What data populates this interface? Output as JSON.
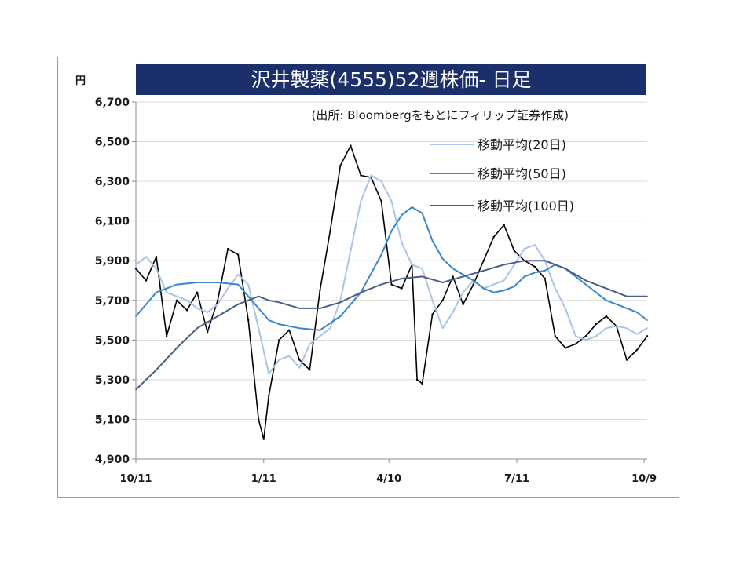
{
  "chart_data": {
    "type": "line",
    "title": "沢井製薬(4555)52週株価- 日足",
    "subtitle": "(出所: Bloombergをもとにフィリップ証券作成)",
    "ylabel": "円",
    "ylim": [
      4900,
      6700
    ],
    "yticks": [
      "4,900",
      "5,100",
      "5,300",
      "5,500",
      "5,700",
      "5,900",
      "6,100",
      "6,300",
      "6,500",
      "6,700"
    ],
    "xlim": [
      0,
      100
    ],
    "xticks": [
      {
        "label": "10/11",
        "x": 0
      },
      {
        "label": "1/11",
        "x": 25
      },
      {
        "label": "4/10",
        "x": 49.5
      },
      {
        "label": "7/11",
        "x": 74.5
      },
      {
        "label": "10/9",
        "x": 99.4
      }
    ],
    "grid": true,
    "legend_position": "top-right",
    "colors": {
      "price": "#000000",
      "ma20": "#a9c4e4",
      "ma50": "#3b87cc",
      "ma100": "#4a5f88",
      "title_bg": "#1b2f6b"
    },
    "series": [
      {
        "name": "日足",
        "x": [
          0,
          2,
          4,
          6,
          8,
          10,
          12,
          14,
          16,
          18,
          20,
          22,
          24,
          25,
          26,
          28,
          30,
          32,
          34,
          36,
          38,
          40,
          42,
          44,
          46,
          48,
          50,
          52,
          54,
          55,
          56,
          58,
          60,
          62,
          64,
          66,
          68,
          70,
          72,
          74,
          76,
          78,
          80,
          82,
          84,
          86,
          88,
          90,
          92,
          94,
          96,
          98,
          100
        ],
        "y": [
          5860,
          5800,
          5920,
          5520,
          5700,
          5650,
          5740,
          5540,
          5700,
          5960,
          5930,
          5600,
          5100,
          5000,
          5220,
          5500,
          5550,
          5400,
          5350,
          5750,
          6050,
          6380,
          6480,
          6330,
          6320,
          6200,
          5780,
          5760,
          5880,
          5300,
          5280,
          5630,
          5700,
          5820,
          5680,
          5780,
          5900,
          6020,
          6080,
          5950,
          5900,
          5870,
          5810,
          5520,
          5460,
          5480,
          5520,
          5580,
          5620,
          5570,
          5400,
          5450,
          5520
        ]
      },
      {
        "name": "移動平均(20日)",
        "x": [
          0,
          2,
          4,
          6,
          8,
          10,
          12,
          14,
          16,
          18,
          20,
          22,
          24,
          26,
          28,
          30,
          32,
          34,
          36,
          38,
          40,
          42,
          44,
          46,
          48,
          50,
          52,
          54,
          56,
          58,
          60,
          62,
          64,
          66,
          68,
          70,
          72,
          74,
          76,
          78,
          80,
          82,
          84,
          86,
          88,
          90,
          92,
          94,
          96,
          98,
          100
        ],
        "y": [
          5880,
          5920,
          5860,
          5740,
          5720,
          5700,
          5660,
          5640,
          5680,
          5760,
          5830,
          5780,
          5560,
          5330,
          5400,
          5420,
          5360,
          5480,
          5520,
          5560,
          5700,
          5950,
          6200,
          6330,
          6300,
          6200,
          5990,
          5880,
          5860,
          5700,
          5560,
          5640,
          5740,
          5800,
          5760,
          5780,
          5800,
          5880,
          5960,
          5980,
          5900,
          5760,
          5660,
          5520,
          5500,
          5520,
          5560,
          5570,
          5560,
          5530,
          5560
        ]
      },
      {
        "name": "移動平均(50日)",
        "x": [
          0,
          4,
          8,
          12,
          16,
          20,
          22,
          24,
          26,
          28,
          32,
          36,
          40,
          44,
          48,
          50,
          52,
          54,
          56,
          58,
          60,
          62,
          64,
          66,
          68,
          70,
          72,
          74,
          76,
          78,
          80,
          82,
          84,
          86,
          88,
          90,
          92,
          94,
          96,
          98,
          100
        ],
        "y": [
          5620,
          5740,
          5780,
          5790,
          5790,
          5780,
          5720,
          5660,
          5600,
          5580,
          5560,
          5550,
          5620,
          5740,
          5930,
          6050,
          6130,
          6170,
          6140,
          6000,
          5910,
          5860,
          5830,
          5800,
          5760,
          5740,
          5750,
          5770,
          5820,
          5840,
          5850,
          5880,
          5860,
          5820,
          5780,
          5740,
          5700,
          5680,
          5660,
          5640,
          5600
        ]
      },
      {
        "name": "移動平均(100日)",
        "x": [
          0,
          4,
          8,
          12,
          16,
          20,
          24,
          26,
          28,
          32,
          36,
          40,
          44,
          48,
          52,
          56,
          60,
          64,
          68,
          72,
          76,
          80,
          84,
          88,
          92,
          96,
          100
        ],
        "y": [
          5250,
          5350,
          5460,
          5560,
          5620,
          5680,
          5720,
          5700,
          5690,
          5660,
          5660,
          5690,
          5740,
          5780,
          5810,
          5820,
          5790,
          5820,
          5850,
          5880,
          5900,
          5900,
          5860,
          5800,
          5760,
          5720,
          5720
        ]
      }
    ]
  }
}
